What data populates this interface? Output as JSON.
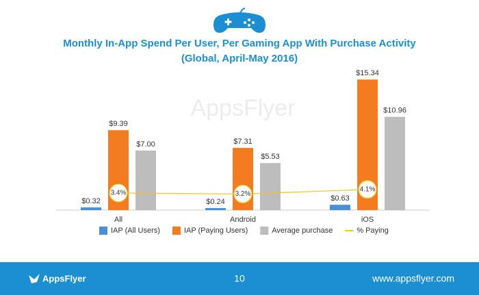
{
  "chart_data": {
    "type": "bar",
    "title": "Monthly In-App Spend Per User, Per Gaming App With Purchase Activity",
    "subtitle": "(Global, April-May 2016)",
    "watermark": "AppsFlyer",
    "categories": [
      "All",
      "Android",
      "iOS"
    ],
    "ylim": [
      0,
      16
    ],
    "y2lim": [
      0,
      27
    ],
    "legend": "bottom",
    "series": [
      {
        "name": "IAP (All Users)",
        "color": "#4a90d9",
        "values": [
          0.32,
          0.24,
          0.63
        ],
        "value_labels": [
          "$0.32",
          "$0.24",
          "$0.63"
        ]
      },
      {
        "name": "IAP (Paying Users)",
        "color": "#f47b20",
        "values": [
          9.39,
          7.31,
          15.34
        ],
        "value_labels": [
          "$9.39",
          "$7.31",
          "$15.34"
        ]
      },
      {
        "name": "Average purchase",
        "color": "#bdbdbd",
        "values": [
          7.0,
          5.53,
          10.96
        ],
        "value_labels": [
          "$7.00",
          "$5.53",
          "$10.96"
        ]
      },
      {
        "name": "% Paying",
        "color": "#f5c518",
        "type": "line",
        "axis": "y2",
        "values": [
          3.4,
          3.2,
          4.1
        ],
        "value_labels": [
          "3.4%",
          "3.2%",
          "4.1%"
        ]
      }
    ]
  },
  "footer": {
    "logo": "AppsFlyer",
    "page": "10",
    "url": "www.appsflyer.com"
  }
}
